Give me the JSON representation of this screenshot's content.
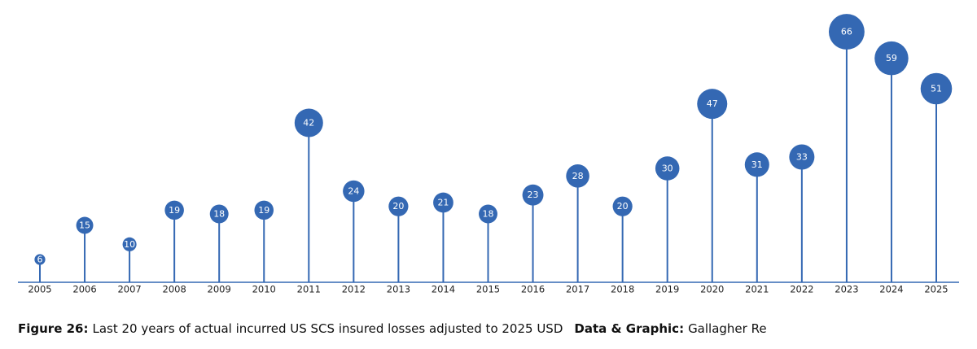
{
  "chart_data": {
    "type": "lollipop",
    "categories": [
      "2005",
      "2006",
      "2007",
      "2008",
      "2009",
      "2010",
      "2011",
      "2012",
      "2013",
      "2014",
      "2015",
      "2016",
      "2017",
      "2018",
      "2019",
      "2020",
      "2021",
      "2022",
      "2023",
      "2024",
      "2025"
    ],
    "values": [
      6,
      15,
      10,
      19,
      18,
      19,
      42,
      24,
      20,
      21,
      18,
      23,
      28,
      20,
      30,
      47,
      31,
      33,
      66,
      59,
      51
    ],
    "color": "#3468b3",
    "caption_label": "Figure 26:",
    "caption_text": "Last 20 years of actual incurred US SCS insured losses adjusted to 2025 USD",
    "source_label": "Data & Graphic:",
    "source": "Gallagher Re"
  }
}
